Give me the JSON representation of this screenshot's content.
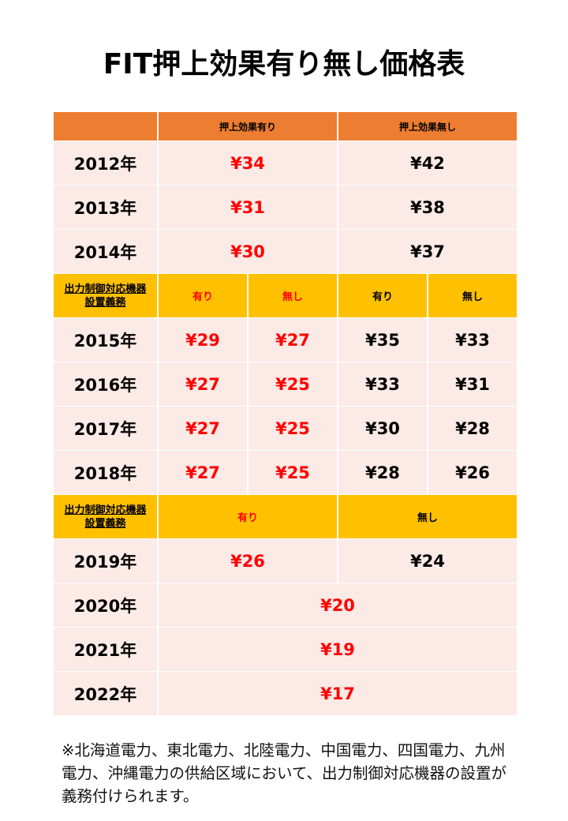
{
  "title": "FIT押上効果有り無し価格表",
  "header": {
    "col_with": "押上効果有り",
    "col_without": "押上効果無し"
  },
  "obligation_label": "出力制御対応機器設置義務",
  "obligation_label_lines": [
    "出力制御対応機器",
    "設置義務"
  ],
  "yes": "有り",
  "no": "無し",
  "colors": {
    "header": "#ED7D31",
    "subheader": "#FFC000",
    "cell": "#FBEAE6",
    "highlight": "#FF0000"
  },
  "period1": [
    {
      "year": "2012年",
      "with": "¥34",
      "without": "¥42"
    },
    {
      "year": "2013年",
      "with": "¥31",
      "without": "¥38"
    },
    {
      "year": "2014年",
      "with": "¥30",
      "without": "¥37"
    }
  ],
  "period2": [
    {
      "year": "2015年",
      "with_yes": "¥29",
      "with_no": "¥27",
      "without_yes": "¥35",
      "without_no": "¥33"
    },
    {
      "year": "2016年",
      "with_yes": "¥27",
      "with_no": "¥25",
      "without_yes": "¥33",
      "without_no": "¥31"
    },
    {
      "year": "2017年",
      "with_yes": "¥27",
      "with_no": "¥25",
      "without_yes": "¥30",
      "without_no": "¥28"
    },
    {
      "year": "2018年",
      "with_yes": "¥27",
      "with_no": "¥25",
      "without_yes": "¥28",
      "without_no": "¥26"
    }
  ],
  "period3": [
    {
      "year": "2019年",
      "yes": "¥26",
      "no": "¥24"
    }
  ],
  "period4": [
    {
      "year": "2020年",
      "price": "¥20"
    },
    {
      "year": "2021年",
      "price": "¥19"
    },
    {
      "year": "2022年",
      "price": "¥17"
    }
  ],
  "note": "※北海道電力、東北電力、北陸電力、中国電力、四国電力、九州電力、沖縄電力の供給区域において、出力制御対応機器の設置が義務付けられます。"
}
